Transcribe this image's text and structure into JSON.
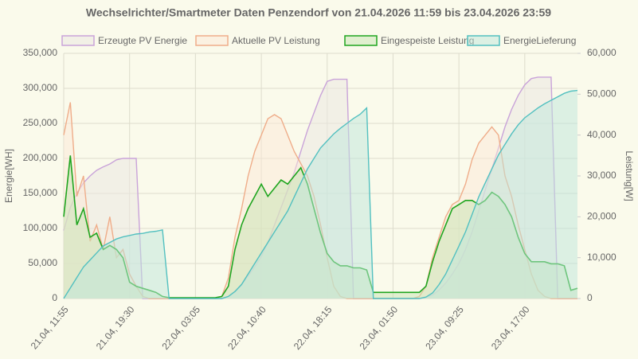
{
  "chart_data": {
    "type": "line",
    "title": "Wechselrichter/Smartmeter Daten Penzendorf von 21.04.2026 11:59 bis 23.04.2026 23:59",
    "y_label": "Energie[WH]",
    "y2_label": "Leistung[W]",
    "categories": [
      "21.04, 11:55",
      null,
      null,
      null,
      null,
      null,
      null,
      null,
      null,
      null,
      "21.04, 19:30",
      null,
      null,
      null,
      null,
      null,
      null,
      null,
      null,
      null,
      "22.04, 03:05",
      null,
      null,
      null,
      null,
      null,
      null,
      null,
      null,
      null,
      "22.04, 10:40",
      null,
      null,
      null,
      null,
      null,
      null,
      null,
      null,
      null,
      "22.04, 18:15",
      null,
      null,
      null,
      null,
      null,
      null,
      null,
      null,
      null,
      "23.04, 01:50",
      null,
      null,
      null,
      null,
      null,
      null,
      null,
      null,
      null,
      "23.04, 09:25",
      null,
      null,
      null,
      null,
      null,
      null,
      null,
      null,
      null,
      "23.04, 17:00",
      null,
      null,
      null,
      null,
      null,
      null,
      null,
      null
    ],
    "ylim": [
      0,
      350000
    ],
    "yticks": [
      0,
      {
        "value": 50000,
        "label": "50,000"
      },
      {
        "value": 100000,
        "label": "100,000"
      },
      {
        "value": 150000,
        "label": "150,000"
      },
      {
        "value": 200000,
        "label": "200,000"
      },
      {
        "value": 250000,
        "label": "250,000"
      },
      {
        "value": 300000,
        "label": "300,000"
      },
      {
        "value": 350000,
        "label": "350,000"
      }
    ],
    "y2lim": [
      0,
      60000
    ],
    "y2ticks": [
      0,
      {
        "value": 10000,
        "label": "10,000"
      },
      {
        "value": 20000,
        "label": "20,000"
      },
      {
        "value": 30000,
        "label": "30,000"
      },
      {
        "value": 40000,
        "label": "40,000"
      },
      {
        "value": 50000,
        "label": "50,000"
      },
      {
        "value": 60000,
        "label": "60,000"
      }
    ],
    "grid": true,
    "legend": "top",
    "series": [
      {
        "name": "Erzeugte PV Energie",
        "color": "#c9a3d9",
        "fill": "rgba(235,232,225,0.55)",
        "values": [
          97000,
          130000,
          150000,
          165000,
          175000,
          183000,
          188000,
          192000,
          198000,
          200000,
          200000,
          200000,
          0,
          0,
          0,
          0,
          0,
          0,
          0,
          0,
          0,
          0,
          0,
          0,
          0,
          3000,
          10000,
          20000,
          32000,
          45000,
          60000,
          80000,
          105000,
          130000,
          155000,
          180000,
          210000,
          240000,
          265000,
          290000,
          310000,
          313000,
          313000,
          313000,
          0,
          0,
          0,
          0,
          0,
          0,
          0,
          0,
          0,
          0,
          0,
          2000,
          5000,
          12000,
          22000,
          35000,
          50000,
          70000,
          95000,
          125000,
          155000,
          185000,
          215000,
          245000,
          270000,
          290000,
          305000,
          314000,
          316000,
          316000,
          316000,
          0,
          0,
          0,
          0
        ]
      },
      {
        "name": "Aktuelle PV Leistung",
        "color": "#efad8a",
        "fill": "rgba(252,232,215,0.5)",
        "axis": "y2",
        "values": [
          40000,
          48000,
          25000,
          30000,
          14000,
          18000,
          12000,
          20000,
          10000,
          12000,
          6000,
          3000,
          500,
          0,
          0,
          0,
          0,
          0,
          0,
          0,
          0,
          0,
          0,
          0,
          500,
          5000,
          15000,
          22000,
          30000,
          36000,
          40000,
          44000,
          45000,
          44000,
          40000,
          36000,
          33000,
          30000,
          25000,
          18000,
          10000,
          3000,
          500,
          0,
          0,
          0,
          0,
          0,
          0,
          0,
          0,
          0,
          0,
          0,
          500,
          3000,
          10000,
          15000,
          20000,
          23000,
          24000,
          28000,
          34000,
          38000,
          40000,
          42000,
          40000,
          30000,
          25000,
          18000,
          12000,
          6000,
          2000,
          500,
          0,
          0,
          0,
          0,
          0
        ]
      },
      {
        "name": "Eingespeiste Leistung",
        "color": "#1fa51f",
        "fill": "rgba(200,228,180,0.5)",
        "axis": "y2",
        "values": [
          20000,
          35000,
          18000,
          22000,
          15000,
          16000,
          12000,
          13000,
          12000,
          10000,
          4000,
          3000,
          2500,
          2000,
          1500,
          500,
          200,
          200,
          200,
          200,
          200,
          200,
          200,
          200,
          500,
          3000,
          12000,
          18000,
          22000,
          25000,
          28000,
          25000,
          27000,
          29000,
          28000,
          30000,
          32000,
          28000,
          22000,
          16000,
          11000,
          9000,
          8000,
          8000,
          7500,
          7500,
          7000,
          1500,
          1500,
          1500,
          1500,
          1500,
          1500,
          1500,
          1500,
          3000,
          9000,
          14000,
          18000,
          22000,
          23000,
          24000,
          24000,
          23000,
          24000,
          26000,
          25000,
          23000,
          20000,
          15000,
          11000,
          9000,
          9000,
          9000,
          8500,
          8500,
          8000,
          2000,
          2500
        ]
      },
      {
        "name": "EnergieLieferung",
        "color": "#52c0c0",
        "fill": "rgba(190,230,220,0.5)",
        "values": [
          0,
          15000,
          30000,
          45000,
          55000,
          65000,
          75000,
          80000,
          85000,
          88000,
          90000,
          92000,
          93000,
          95000,
          96000,
          98000,
          0,
          0,
          0,
          0,
          0,
          0,
          0,
          0,
          0,
          3000,
          10000,
          20000,
          35000,
          50000,
          65000,
          80000,
          95000,
          110000,
          125000,
          145000,
          165000,
          185000,
          200000,
          215000,
          225000,
          235000,
          243000,
          250000,
          257000,
          263000,
          272000,
          0,
          0,
          0,
          0,
          0,
          0,
          0,
          0,
          2000,
          8000,
          20000,
          35000,
          55000,
          75000,
          95000,
          120000,
          145000,
          165000,
          185000,
          205000,
          220000,
          235000,
          248000,
          258000,
          265000,
          272000,
          278000,
          283000,
          288000,
          293000,
          296000,
          297000
        ]
      }
    ]
  }
}
